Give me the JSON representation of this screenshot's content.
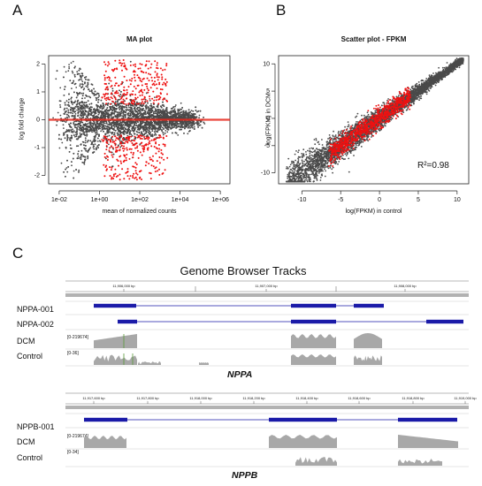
{
  "panels": {
    "a": "A",
    "b": "B",
    "c": "C"
  },
  "chart_data": [
    {
      "type": "scatter",
      "title": "MA plot",
      "xlabel": "mean of normalized counts",
      "ylabel": "log fold change",
      "x_scale": "log10",
      "xlim": [
        0.003,
        3000000
      ],
      "ylim": [
        -2.3,
        2.3
      ],
      "x_tick_labels": [
        "1e-02",
        "1e+00",
        "1e+02",
        "1e+04",
        "1e+06"
      ],
      "y_tick_labels": [
        "-2",
        "-1",
        "0",
        "1",
        "2"
      ],
      "reference_line": {
        "y": 0,
        "color": "#e8281c"
      },
      "colors": {
        "all_genes": "#4a4a4a",
        "significant": "#ee1111"
      },
      "series": [
        {
          "values_description_omitted": true
        }
      ]
    },
    {
      "type": "scatter",
      "title": "Scatter plot - FPKM",
      "xlabel": "log(FPKM) in control",
      "ylabel": "log(FPKM) in DCM",
      "xlim": [
        -13,
        11.5
      ],
      "ylim": [
        -12,
        11.5
      ],
      "x_tick_labels": [
        "-10",
        "-5",
        "0",
        "5",
        "10"
      ],
      "y_tick_labels": [
        "-10",
        "-5",
        "0",
        "5",
        "10"
      ],
      "annotation": "R²=0.98",
      "colors": {
        "all_genes": "#4a4a4a",
        "significant": "#ee1111"
      }
    }
  ],
  "genome_browser": {
    "title": "Genome Browser Tracks",
    "nppa": {
      "gene": "NPPA",
      "ruler": [
        "11,906,000 bp",
        "11,907,000 bp",
        "11,908,000 bp"
      ],
      "tracks": [
        "NPPA-001",
        "NPPA-002",
        "DCM",
        "Control"
      ],
      "dcm_range": "[0-219674]",
      "control_range": "[0-36]"
    },
    "nppb": {
      "gene": "NPPB",
      "ruler": [
        "11,917,600 bp",
        "11,917,800 bp",
        "11,918,000 bp",
        "11,918,200 bp",
        "11,918,400 bp",
        "11,918,600 bp",
        "11,918,800 bp",
        "11,919,000 bp"
      ],
      "tracks": [
        "NPPB-001",
        "DCM",
        "Control"
      ],
      "dcm_range": "[0-219674]",
      "control_range": "[0-34]"
    },
    "colors": {
      "exon": "#1a1aa8",
      "coverage": "#a8a8a8"
    }
  }
}
